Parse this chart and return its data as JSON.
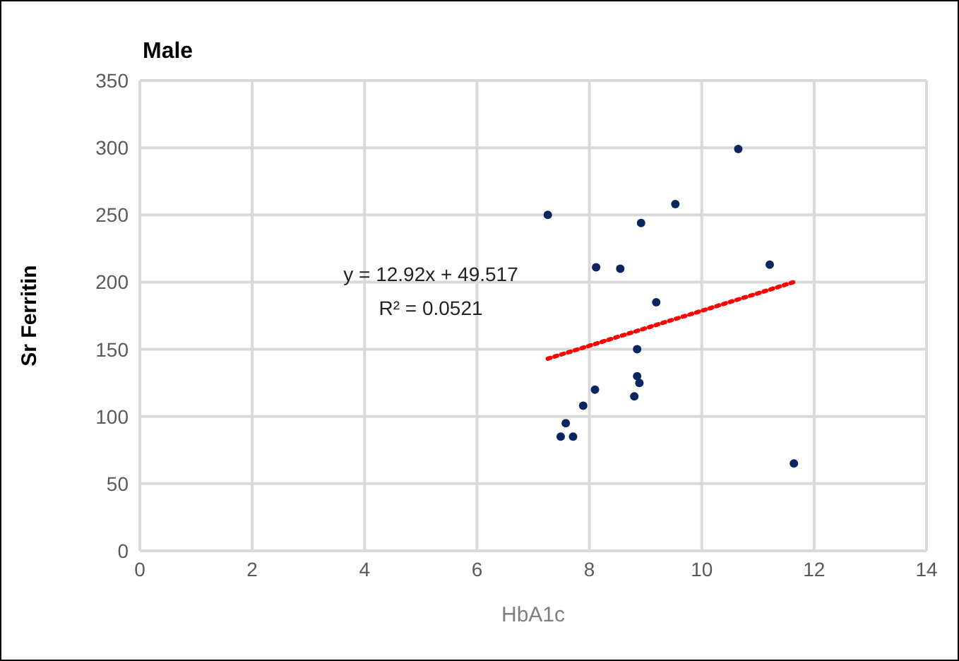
{
  "chart_data": {
    "type": "scatter",
    "title": "Male",
    "xlabel": "HbA1c",
    "ylabel": "Sr Ferritin",
    "annotations": [
      "y = 12.92x + 49.517",
      "R² = 0.0521"
    ],
    "series": [
      {
        "color": "#0b2560",
        "x": [
          7.26,
          10.65,
          9.53,
          8.92,
          8.12,
          8.55,
          11.21,
          9.19,
          8.85,
          8.85,
          8.89,
          8.8,
          8.1,
          7.89,
          7.58,
          7.49,
          7.71,
          11.64
        ],
        "values": [
          250,
          299,
          258,
          244,
          211,
          210,
          213,
          185,
          150,
          130,
          125,
          115,
          120,
          108,
          95,
          85,
          85,
          65
        ],
        "marker": "circle"
      },
      {
        "type": "line",
        "color": "#ff0000",
        "x": [
          7.26,
          11.64
        ],
        "values": [
          143,
          200
        ],
        "line_style": "dotted",
        "marker": "none"
      }
    ],
    "xlim": [
      0,
      14
    ],
    "xticks": [
      0,
      2,
      4,
      6,
      8,
      10,
      12,
      14
    ],
    "ylim": [
      0,
      350
    ],
    "yticks": [
      0,
      50,
      100,
      150,
      200,
      250,
      300,
      350
    ],
    "grid": true,
    "legend": false
  }
}
